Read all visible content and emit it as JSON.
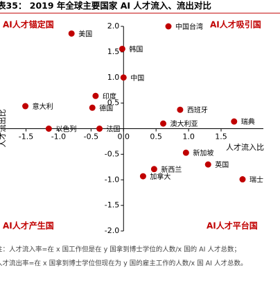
{
  "chart_data": {
    "type": "scatter",
    "title": "表35：  2019 年全球主要国家 AI 人才流入、流出对比",
    "x_label": "人才流入比",
    "y_label": "人才流出比",
    "quadrants": [
      "AI人才锚定国",
      "AI人才吸引国",
      "AI人才产生国",
      "AI人才平台国"
    ],
    "notes": [
      "注：人才流入率=在 x 国工作但是在 y 国拿到博士学位的人数/x 国的 AI 人才总数；",
      "人才流出率=在 x 国拿到博士学位但现在为 y 国的雇主工作的人数/x 国 AI 人才总数。"
    ],
    "color": "#c00000",
    "labels": [
      "美国",
      "中国台湾",
      "韩国",
      "中国",
      "印度",
      "意大利",
      "德国",
      "西班牙",
      "澳大利亚",
      "瑞典",
      "以色列",
      "法国",
      "新加坡",
      "英国",
      "新西兰",
      "加拿大",
      "瑞士"
    ],
    "x": [
      -0.8,
      0.69,
      -0.02,
      0.0,
      -0.43,
      -1.51,
      -0.48,
      0.87,
      0.61,
      1.7,
      -1.15,
      -0.37,
      0.96,
      1.3,
      0.47,
      0.3,
      1.83
    ],
    "values": [
      1.86,
      2.0,
      1.56,
      1.0,
      0.64,
      0.44,
      0.41,
      0.37,
      0.1,
      0.14,
      0.0,
      0.0,
      -0.47,
      -0.7,
      -0.79,
      -0.93,
      -0.99
    ],
    "xlim": [
      -1.9,
      2.15
    ],
    "ylim": [
      -2.0,
      2.0
    ],
    "xticks": [
      {
        "value": -1.5,
        "label": "-1.5"
      },
      {
        "value": -1,
        "label": "-1.0"
      },
      {
        "value": -0.5,
        "label": "-0.5"
      },
      {
        "value": 0,
        "label": "0.0"
      },
      {
        "value": 0.5,
        "label": "0.5"
      },
      {
        "value": 1,
        "label": "1.0"
      },
      {
        "value": 1.5,
        "label": "1.5"
      }
    ],
    "yticks": [
      {
        "value": 2,
        "label": "2.0"
      },
      {
        "value": 1.5,
        "label": "1.5"
      },
      {
        "value": 1,
        "label": "1.0"
      },
      {
        "value": 0.5,
        "label": "0.5"
      },
      {
        "value": -0.5,
        "label": "-0.5"
      },
      {
        "value": -1,
        "label": "-1.0"
      },
      {
        "value": -1.5,
        "label": "-1.5"
      },
      {
        "value": -2,
        "label": "-2.0"
      }
    ]
  }
}
